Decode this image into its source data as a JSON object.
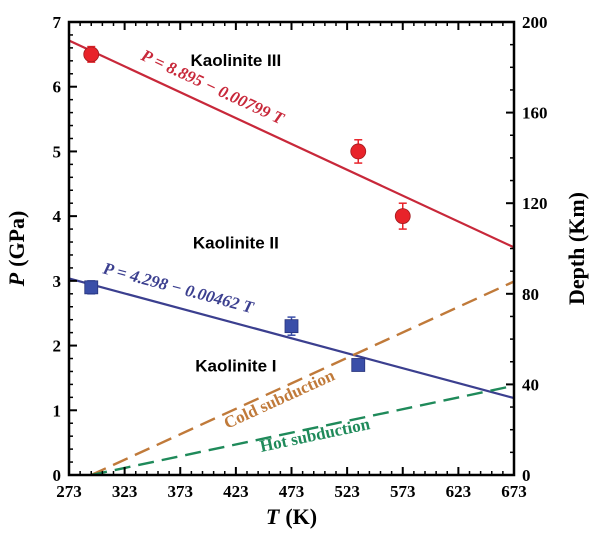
{
  "chart_data": {
    "type": "scatter",
    "xlabel": {
      "var": "T",
      "unit": "(K)"
    },
    "ylabel": {
      "var": "P",
      "unit": "(GPa)"
    },
    "y2label": "Depth (Km)",
    "xlim": [
      273,
      673
    ],
    "ylim": [
      0,
      7
    ],
    "y2lim": [
      0,
      200
    ],
    "x_ticks": [
      273,
      323,
      373,
      423,
      473,
      523,
      573,
      623,
      673
    ],
    "y_ticks": [
      0,
      1,
      2,
      3,
      4,
      5,
      6,
      7
    ],
    "y2_ticks": [
      0,
      40,
      80,
      120,
      160,
      200
    ],
    "lines": [
      {
        "id": "kaolinite-iii-boundary",
        "label": "P = 8.895 − 0.00799 T",
        "intercept": 8.895,
        "slope": -0.00799,
        "color": "#c8283a",
        "style": "solid"
      },
      {
        "id": "kaolinite-ii-boundary",
        "label": "P = 4.298 − 0.00462 T",
        "intercept": 4.298,
        "slope": -0.00462,
        "color": "#3b3f8f",
        "style": "solid"
      }
    ],
    "subduction_lines": [
      {
        "id": "cold-subduction",
        "label": "Cold subduction",
        "x": [
          293,
          673
        ],
        "y": [
          0,
          2.99
        ],
        "color": "#c07a3a",
        "style": "dashed"
      },
      {
        "id": "hot-subduction",
        "label": "Hot subduction",
        "x": [
          293,
          673
        ],
        "y": [
          0,
          1.38
        ],
        "color": "#1f8a5a",
        "style": "dashed"
      }
    ],
    "series": [
      {
        "id": "kaolinite-iii-points",
        "marker": "circle",
        "color": "#e8232a",
        "points": [
          {
            "x": 293,
            "y": 6.5,
            "err": 0.12
          },
          {
            "x": 533,
            "y": 5.0,
            "err": 0.18
          },
          {
            "x": 573,
            "y": 4.0,
            "err": 0.2
          }
        ]
      },
      {
        "id": "kaolinite-ii-points",
        "marker": "square",
        "color": "#3a4ea8",
        "points": [
          {
            "x": 293,
            "y": 2.9,
            "err": 0.1
          },
          {
            "x": 473,
            "y": 2.3,
            "err": 0.14
          },
          {
            "x": 533,
            "y": 1.7,
            "err": 0.08
          }
        ]
      }
    ],
    "annotations": [
      {
        "id": "kaolinite-iii",
        "text": "Kaolinite III",
        "x": 423,
        "y": 6.32
      },
      {
        "id": "kaolinite-ii",
        "text": "Kaolinite II",
        "x": 423,
        "y": 3.5
      },
      {
        "id": "kaolinite-i",
        "text": "Kaolinite I",
        "x": 423,
        "y": 1.6
      }
    ]
  }
}
